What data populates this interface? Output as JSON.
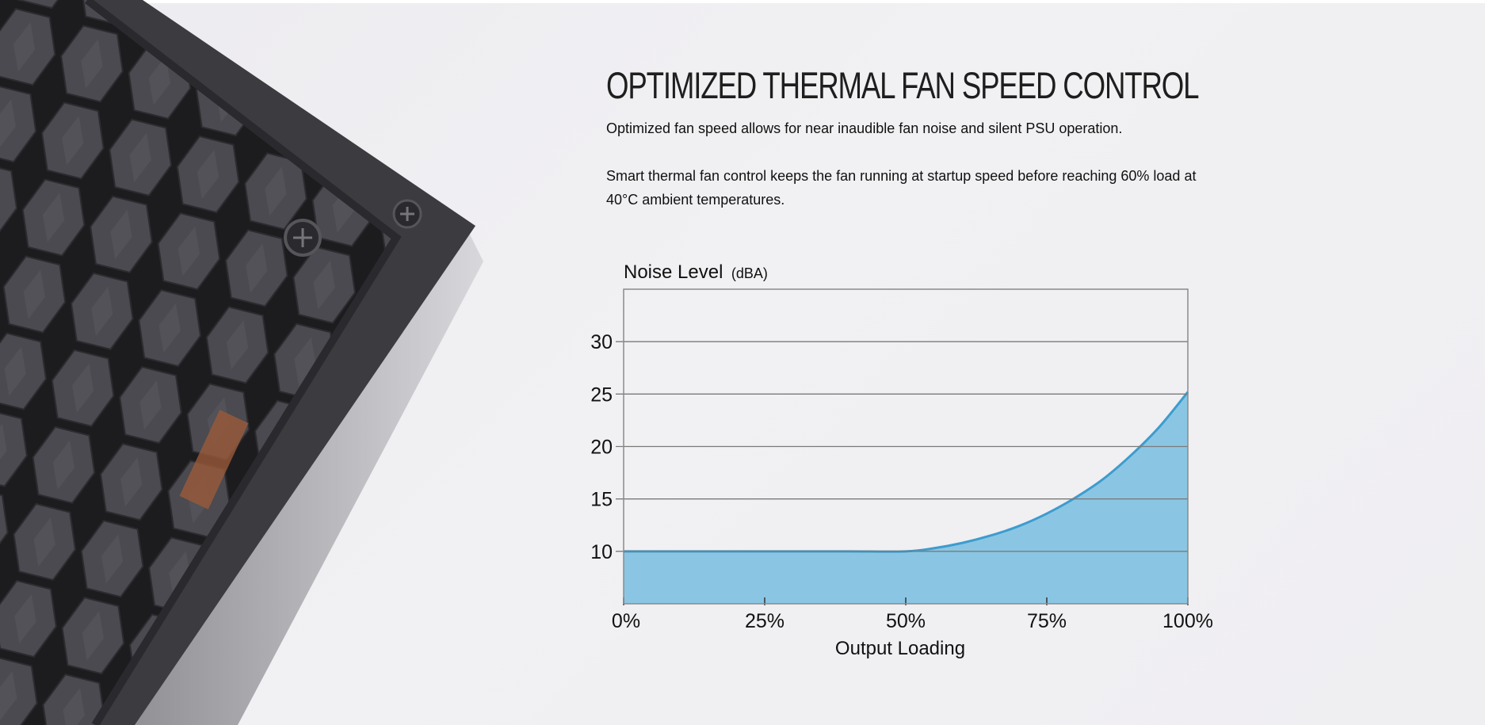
{
  "section": {
    "heading": "OPTIMIZED THERMAL FAN SPEED CONTROL",
    "paragraph_1": "Optimized fan speed allows for near inaudible fan noise and silent PSU operation.",
    "paragraph_2": "Smart thermal fan control keeps the fan running at startup speed before reaching 60% load at 40°C ambient temperatures."
  },
  "product_image": {
    "subject": "power supply unit with honeycomb fan grille"
  },
  "chart_data": {
    "type": "area",
    "ylabel_main": "Noise Level",
    "ylabel_unit": "(dBA)",
    "xlabel": "Output Loading",
    "x_tick_labels": [
      "0%",
      "25%",
      "50%",
      "75%",
      "100%"
    ],
    "x_ticks": [
      0,
      25,
      50,
      75,
      100
    ],
    "y_ticks": [
      10,
      15,
      20,
      25,
      30
    ],
    "xlim": [
      0,
      100
    ],
    "ylim": [
      5,
      35
    ],
    "grid": true,
    "series": [
      {
        "x": [
          0,
          10,
          20,
          30,
          40,
          50,
          55,
          60,
          65,
          70,
          75,
          80,
          85,
          90,
          95,
          100
        ],
        "y": [
          10,
          10,
          10,
          10,
          10,
          10,
          10.3,
          10.8,
          11.5,
          12.4,
          13.6,
          15.1,
          16.9,
          19.2,
          21.9,
          25.2
        ]
      }
    ],
    "colors": {
      "fill": "#8ac6e3",
      "line": "#3d9cce",
      "grid": "#7a7a7a",
      "frame": "#8a8a8a"
    }
  }
}
